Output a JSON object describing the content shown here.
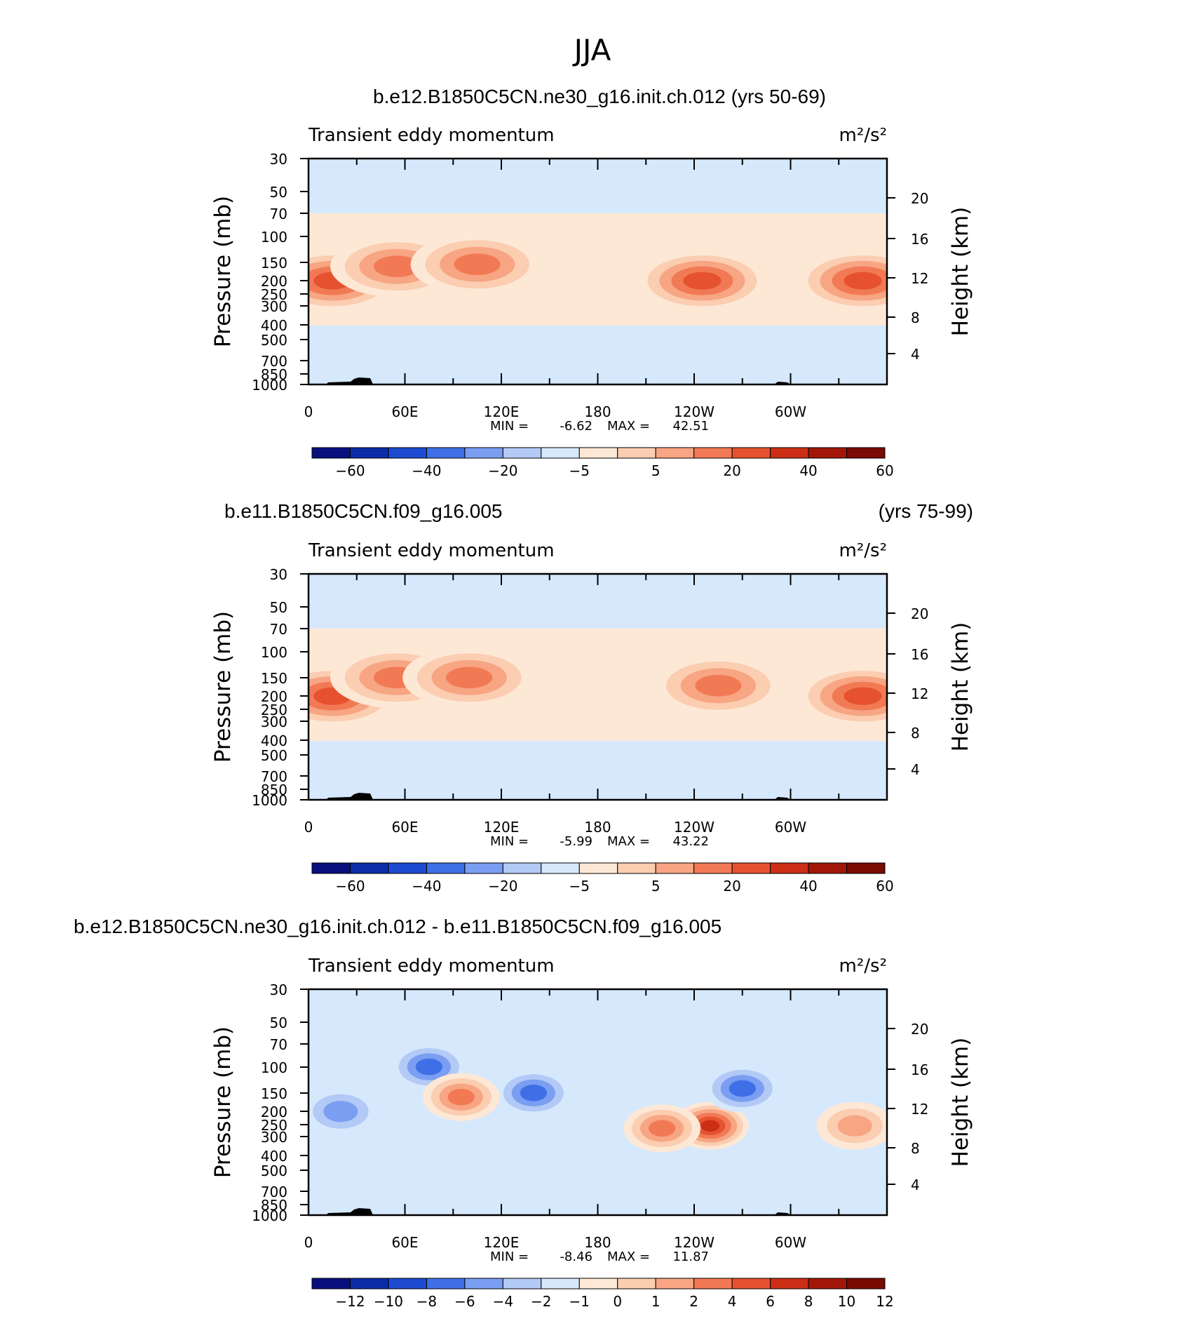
{
  "title": "JJA",
  "chart_data": [
    {
      "type": "heatmap",
      "title": "b.e12.B1850C5CN.ne30_g16.init.ch.012 (yrs 50-69)",
      "title_left": "",
      "title_right": "",
      "subtitle": "Transient eddy momentum",
      "units": "m²/s²",
      "x_ticks": [
        "0",
        "60E",
        "120E",
        "180",
        "120W",
        "60W"
      ],
      "y_left_label": "Pressure (mb)",
      "y_left_ticks": [
        "30",
        "50",
        "70",
        "100",
        "150",
        "200",
        "250",
        "300",
        "400",
        "500",
        "700",
        "850",
        "1000"
      ],
      "y_right_label": "Height (km)",
      "y_right_ticks": [
        "20",
        "16",
        "12",
        "8",
        "4"
      ],
      "min_label": "MIN =",
      "min": "-6.62",
      "max_label": "MAX =",
      "max": "42.51",
      "colorbar_colors": [
        "#0a0f7e",
        "#0d2ca8",
        "#1d4bd0",
        "#3e6fe6",
        "#7a9ef2",
        "#b3c9f6",
        "#d6e8fb",
        "#fde8d6",
        "#fbcdb1",
        "#f7a583",
        "#f17a55",
        "#e6522f",
        "#cc2e16",
        "#a21709",
        "#7a0a04"
      ],
      "colorbar_labels": [
        "-60",
        "-40",
        "-20",
        "-5",
        "5",
        "20",
        "40",
        "60"
      ],
      "jets": [
        {
          "lon": 15,
          "p": 200,
          "value": 35
        },
        {
          "lon": 55,
          "p": 160,
          "value": 30
        },
        {
          "lon": 105,
          "p": 155,
          "value": 28
        },
        {
          "lon": 245,
          "p": 200,
          "value": 37
        },
        {
          "lon": 345,
          "p": 200,
          "value": 36
        }
      ]
    },
    {
      "type": "heatmap",
      "title": "",
      "title_left": "b.e11.B1850C5CN.f09_g16.005",
      "title_right": "(yrs 75-99)",
      "subtitle": "Transient eddy momentum",
      "units": "m²/s²",
      "x_ticks": [
        "0",
        "60E",
        "120E",
        "180",
        "120W",
        "60W"
      ],
      "y_left_label": "Pressure (mb)",
      "y_left_ticks": [
        "30",
        "50",
        "70",
        "100",
        "150",
        "200",
        "250",
        "300",
        "400",
        "500",
        "700",
        "850",
        "1000"
      ],
      "y_right_label": "Height (km)",
      "y_right_ticks": [
        "20",
        "16",
        "12",
        "8",
        "4"
      ],
      "min_label": "MIN =",
      "min": "-5.99",
      "max_label": "MAX =",
      "max": "43.22",
      "colorbar_colors": [
        "#0a0f7e",
        "#0d2ca8",
        "#1d4bd0",
        "#3e6fe6",
        "#7a9ef2",
        "#b3c9f6",
        "#d6e8fb",
        "#fde8d6",
        "#fbcdb1",
        "#f7a583",
        "#f17a55",
        "#e6522f",
        "#cc2e16",
        "#a21709",
        "#7a0a04"
      ],
      "colorbar_labels": [
        "-60",
        "-40",
        "-20",
        "-5",
        "5",
        "20",
        "40",
        "60"
      ],
      "jets": [
        {
          "lon": 15,
          "p": 200,
          "value": 32
        },
        {
          "lon": 55,
          "p": 150,
          "value": 30
        },
        {
          "lon": 100,
          "p": 150,
          "value": 27
        },
        {
          "lon": 255,
          "p": 170,
          "value": 30
        },
        {
          "lon": 345,
          "p": 200,
          "value": 33
        }
      ]
    },
    {
      "type": "heatmap",
      "title": "",
      "title_left": "b.e12.B1850C5CN.ne30_g16.init.ch.012 - b.e11.B1850C5CN.f09_g16.005",
      "title_right": "",
      "subtitle": "Transient eddy momentum",
      "units": "m²/s²",
      "x_ticks": [
        "0",
        "60E",
        "120E",
        "180",
        "120W",
        "60W"
      ],
      "y_left_label": "Pressure (mb)",
      "y_left_ticks": [
        "30",
        "50",
        "70",
        "100",
        "150",
        "200",
        "250",
        "300",
        "400",
        "500",
        "700",
        "850",
        "1000"
      ],
      "y_right_label": "Height (km)",
      "y_right_ticks": [
        "20",
        "16",
        "12",
        "8",
        "4"
      ],
      "min_label": "MIN =",
      "min": "-8.46",
      "max_label": "MAX =",
      "max": "11.87",
      "colorbar_colors": [
        "#0a0f7e",
        "#0d2ca8",
        "#1d4bd0",
        "#3e6fe6",
        "#7a9ef2",
        "#b3c9f6",
        "#d6e8fb",
        "#fde8d6",
        "#fbcdb1",
        "#f7a583",
        "#f17a55",
        "#e6522f",
        "#cc2e16",
        "#a21709",
        "#7a0a04"
      ],
      "colorbar_labels": [
        "-12",
        "-10",
        "-8",
        "-6",
        "-4",
        "-2",
        "-1",
        "0",
        "1",
        "2",
        "4",
        "6",
        "8",
        "10",
        "12"
      ],
      "jets": [
        {
          "lon": 75,
          "p": 100,
          "value": -6
        },
        {
          "lon": 140,
          "p": 150,
          "value": -6
        },
        {
          "lon": 95,
          "p": 160,
          "value": 5
        },
        {
          "lon": 250,
          "p": 250,
          "value": 10
        },
        {
          "lon": 270,
          "p": 140,
          "value": -5
        },
        {
          "lon": 20,
          "p": 200,
          "value": -3
        },
        {
          "lon": 340,
          "p": 250,
          "value": 4
        },
        {
          "lon": 220,
          "p": 260,
          "value": 5
        }
      ]
    }
  ]
}
